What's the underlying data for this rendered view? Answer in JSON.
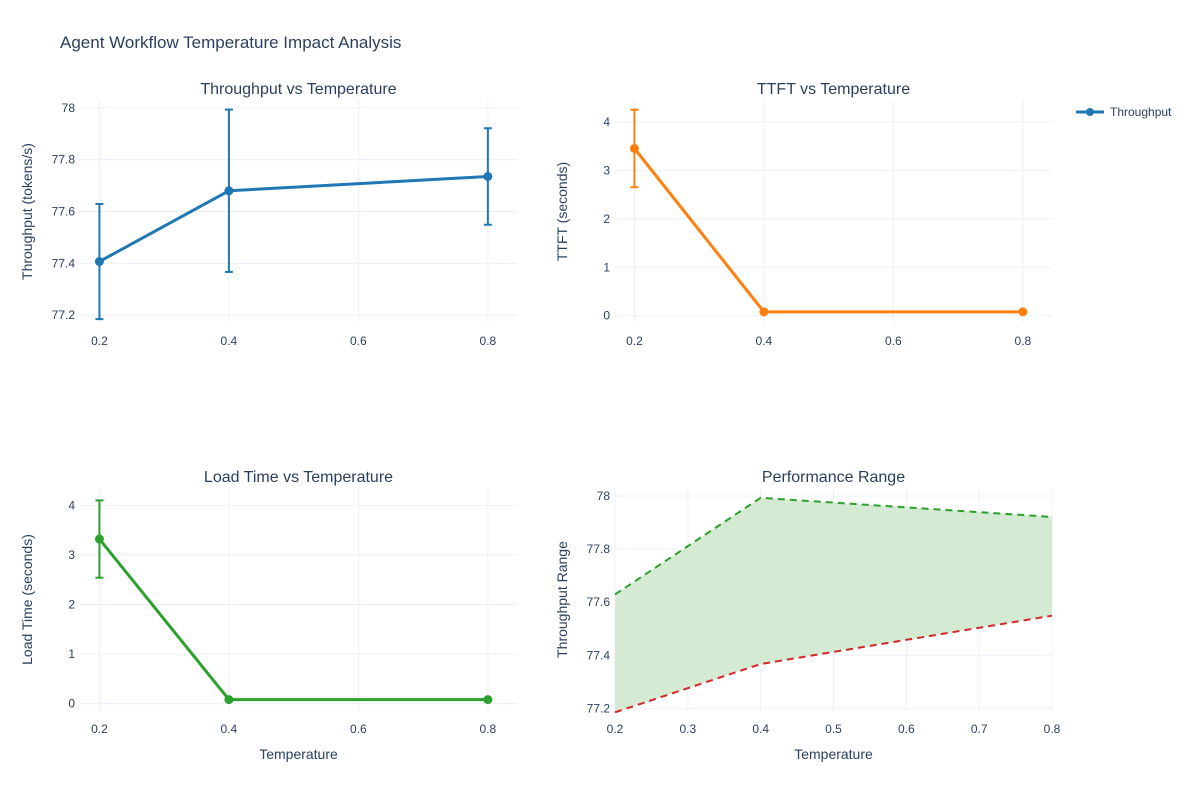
{
  "title": "Agent Workflow Temperature Impact Analysis",
  "legend": {
    "entries": [
      {
        "label": "Throughput",
        "color": "#1f77b4"
      }
    ]
  },
  "chart_data": [
    {
      "type": "line",
      "title": "Throughput vs Temperature",
      "xlabel": "",
      "ylabel": "Throughput (tokens/s)",
      "x": [
        0.2,
        0.4,
        0.8
      ],
      "xticks": [
        "0.2",
        "0.4",
        "0.6",
        "0.8"
      ],
      "yticks": [
        "77.2",
        "77.4",
        "77.6",
        "77.8",
        "78"
      ],
      "xlim": [
        0.17,
        0.845
      ],
      "ylim": [
        77.17,
        78.03
      ],
      "color": "#1f77b4",
      "series": [
        {
          "name": "Throughput",
          "values": [
            77.407,
            77.68,
            77.735
          ],
          "errors": [
            0.222,
            0.313,
            0.186
          ]
        }
      ]
    },
    {
      "type": "line",
      "title": "TTFT vs Temperature",
      "xlabel": "",
      "ylabel": "TTFT (seconds)",
      "x": [
        0.2,
        0.4,
        0.8
      ],
      "xticks": [
        "0.2",
        "0.4",
        "0.6",
        "0.8"
      ],
      "yticks": [
        "0",
        "1",
        "2",
        "3",
        "4"
      ],
      "xlim": [
        0.17,
        0.845
      ],
      "ylim": [
        -0.15,
        4.45
      ],
      "color": "#ff7f0e",
      "series": [
        {
          "values": [
            3.45,
            0.08,
            0.08
          ],
          "errors": [
            0.8,
            0,
            0
          ]
        }
      ]
    },
    {
      "type": "line",
      "title": "Load Time vs Temperature",
      "xlabel": "Temperature",
      "ylabel": "Load Time (seconds)",
      "x": [
        0.2,
        0.4,
        0.8
      ],
      "xticks": [
        "0.2",
        "0.4",
        "0.6",
        "0.8"
      ],
      "yticks": [
        "0",
        "1",
        "2",
        "3",
        "4"
      ],
      "xlim": [
        0.17,
        0.845
      ],
      "ylim": [
        -0.15,
        4.35
      ],
      "color": "#2ca02c",
      "series": [
        {
          "values": [
            3.32,
            0.08,
            0.08
          ],
          "errors": [
            0.78,
            0,
            0
          ]
        }
      ]
    },
    {
      "type": "area",
      "title": "Performance Range",
      "xlabel": "Temperature",
      "ylabel": "Throughput Range",
      "x": [
        0.2,
        0.4,
        0.8
      ],
      "xticks": [
        "0.2",
        "0.3",
        "0.4",
        "0.5",
        "0.6",
        "0.7",
        "0.8"
      ],
      "yticks": [
        "77.2",
        "77.4",
        "77.6",
        "77.8",
        "78"
      ],
      "xlim": [
        0.2,
        0.8
      ],
      "ylim": [
        77.19,
        78.03
      ],
      "fill_color": "#d4ead3",
      "series": [
        {
          "values": [
            77.629,
            77.993,
            77.921
          ],
          "color": "#2ca02c"
        },
        {
          "values": [
            77.185,
            77.367,
            77.549
          ],
          "color": "#d62728"
        }
      ]
    }
  ]
}
